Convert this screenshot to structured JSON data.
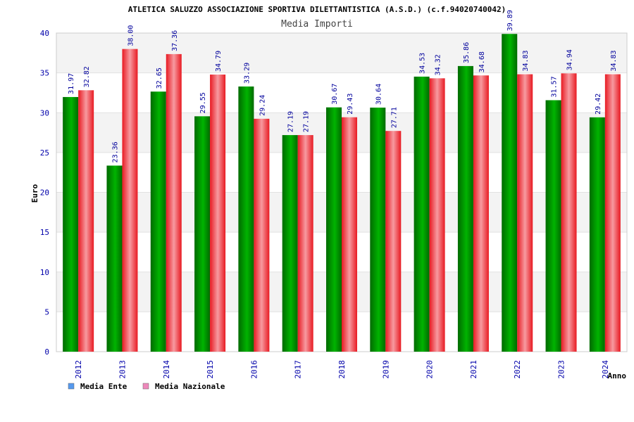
{
  "colors": {
    "ente_bar": "#00b400",
    "ente_bar_dark": "#006a00",
    "nazionale_bar": "#e81a22",
    "nazionale_bar_light": "#f79aa0",
    "legend_ente": "#5599ee",
    "legend_nazionale": "#ee88bb",
    "band": "#f3f3f3",
    "tick_text": "#0000aa"
  },
  "chart_data": {
    "type": "bar",
    "title": "ATLETICA SALUZZO ASSOCIAZIONE SPORTIVA DILETTANTISTICA (A.S.D.) (c.f.94020740042)",
    "subtitle": "Media Importi",
    "xlabel": "Anno",
    "ylabel": "Euro",
    "ylim": [
      0,
      40
    ],
    "yticks": [
      "0",
      "5",
      "10",
      "15",
      "20",
      "25",
      "30",
      "35",
      "40"
    ],
    "grid": true,
    "legend_position": "bottom-left",
    "categories": [
      "2012",
      "2013",
      "2014",
      "2015",
      "2016",
      "2017",
      "2018",
      "2019",
      "2020",
      "2021",
      "2022",
      "2023",
      "2024"
    ],
    "series": [
      {
        "name": "Media Ente",
        "values": [
          31.97,
          23.36,
          32.65,
          29.55,
          33.29,
          27.19,
          30.67,
          30.64,
          34.53,
          35.86,
          39.89,
          31.57,
          29.42
        ],
        "labels": [
          "31.97",
          "23.36",
          "32.65",
          "29.55",
          "33.29",
          "27.19",
          "30.67",
          "30.64",
          "34.53",
          "35.86",
          "39.89",
          "31.57",
          "29.42"
        ]
      },
      {
        "name": "Media Nazionale",
        "values": [
          32.82,
          38.0,
          37.36,
          34.79,
          29.24,
          27.19,
          29.43,
          27.71,
          34.32,
          34.68,
          34.83,
          34.94,
          34.83
        ],
        "labels": [
          "32.82",
          "38.00",
          "37.36",
          "34.79",
          "29.24",
          "27.19",
          "29.43",
          "27.71",
          "34.32",
          "34.68",
          "34.83",
          "34.94",
          "34.83"
        ]
      }
    ]
  }
}
